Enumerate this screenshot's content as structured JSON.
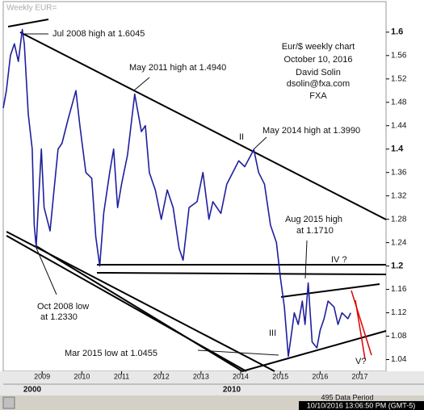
{
  "chart_data": {
    "type": "line",
    "title": "Weekly EUR=",
    "x": [
      2008.02,
      2008.1,
      2008.2,
      2008.3,
      2008.4,
      2008.5,
      2008.55,
      2008.65,
      2008.75,
      2008.8,
      2008.85,
      2008.9,
      2008.98,
      2009.05,
      2009.2,
      2009.3,
      2009.4,
      2009.5,
      2009.65,
      2009.85,
      2009.95,
      2010.1,
      2010.25,
      2010.35,
      2010.45,
      2010.55,
      2010.7,
      2010.8,
      2010.9,
      2011.0,
      2011.15,
      2011.33,
      2011.5,
      2011.6,
      2011.7,
      2011.85,
      2012.0,
      2012.15,
      2012.3,
      2012.45,
      2012.55,
      2012.7,
      2012.9,
      2013.05,
      2013.2,
      2013.3,
      2013.5,
      2013.65,
      2013.8,
      2013.95,
      2014.1,
      2014.33,
      2014.45,
      2014.6,
      2014.75,
      2014.9,
      2015.0,
      2015.1,
      2015.2,
      2015.27,
      2015.35,
      2015.45,
      2015.55,
      2015.62,
      2015.7,
      2015.8,
      2015.92,
      2016.0,
      2016.1,
      2016.2,
      2016.35,
      2016.45,
      2016.55,
      2016.7,
      2016.77
    ],
    "values": [
      1.47,
      1.5,
      1.56,
      1.58,
      1.55,
      1.6045,
      1.58,
      1.46,
      1.4,
      1.27,
      1.233,
      1.3,
      1.4,
      1.3,
      1.26,
      1.33,
      1.4,
      1.41,
      1.45,
      1.5,
      1.44,
      1.36,
      1.35,
      1.25,
      1.2,
      1.29,
      1.36,
      1.4,
      1.3,
      1.34,
      1.39,
      1.494,
      1.43,
      1.44,
      1.36,
      1.33,
      1.28,
      1.33,
      1.3,
      1.23,
      1.21,
      1.3,
      1.31,
      1.36,
      1.28,
      1.31,
      1.29,
      1.34,
      1.36,
      1.38,
      1.37,
      1.399,
      1.36,
      1.34,
      1.27,
      1.24,
      1.18,
      1.13,
      1.0455,
      1.08,
      1.12,
      1.1,
      1.14,
      1.1,
      1.171,
      1.07,
      1.06,
      1.09,
      1.11,
      1.14,
      1.13,
      1.1,
      1.12,
      1.11,
      1.12
    ],
    "color": "#1f1f9e",
    "xlim": [
      2008.02,
      2017.66
    ],
    "xticks": [
      2009,
      2010,
      2011,
      2012,
      2013,
      2014,
      2015,
      2016,
      2017
    ],
    "ylim": [
      1.02,
      1.655
    ],
    "yticks": [
      1.6,
      1.56,
      1.52,
      1.48,
      1.44,
      1.4,
      1.36,
      1.32,
      1.28,
      1.24,
      1.2,
      1.16,
      1.12,
      1.08,
      1.04
    ],
    "decade_labels": [
      "2000",
      "2010"
    ],
    "text_box": [
      "Eur/$ weekly chart",
      "October 10, 2016",
      "David Solin",
      "dsolin@fxa.com",
      "FXA"
    ],
    "annotations": [
      "Jul 2008 high at 1.6045",
      "May 2011 high at 1.4940",
      "II",
      "May 2014 high at 1.3990",
      "Aug 2015 high",
      "at 1.1710",
      "IV ?",
      "Oct 2008 low",
      "at 1.2330",
      "III",
      "Mar 2015 low at 1.0455",
      "V?"
    ],
    "status": [
      "495 Data Period",
      "10/10/2016 13:06:50 PM (GMT-5)"
    ]
  }
}
